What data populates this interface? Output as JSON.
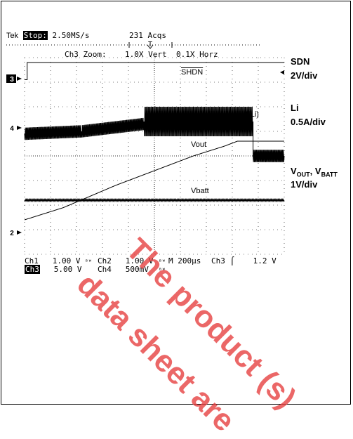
{
  "header": {
    "brand": "Tek",
    "state": "Stop:",
    "rate": "2.50MS/s",
    "acqs": "231 Acqs"
  },
  "zoom_line": {
    "text": "Ch3 Zoom:",
    "vert": "1.0X Vert",
    "horz": "0.1X Horz"
  },
  "channel_markers": {
    "ch3": "3",
    "ch4": "4",
    "ch2": "2"
  },
  "trace_labels": {
    "shdn": "SHDN",
    "ili": "I(Li)",
    "vout": "Vout",
    "vbatt": "Vbatt"
  },
  "right_labels": {
    "sdn": "SDN",
    "sdn_scale": "2V/div",
    "li": "Li",
    "li_scale": "0.5A/div",
    "vout_v": "V",
    "vout_sub": "OUT",
    "vbatt_v": ", V",
    "vbatt_sub": "BATT",
    "v_scale": "1V/div"
  },
  "settings": {
    "ch1": "Ch1",
    "ch1_val": "1.00 V",
    "ch2": "Ch2",
    "ch2_val": "1.00 V",
    "m": "M",
    "m_val": "200µs",
    "trig": "Ch3",
    "trig_val": "1.2 V",
    "ch3": "Ch3",
    "ch3_val": "5.00 V",
    "ch4": "Ch4",
    "ch4_val": "500mV",
    "bw": "ᴮᵂ"
  },
  "watermark": {
    "line1": "The product (s)",
    "line2": "data sheet are"
  },
  "chart_data": {
    "type": "line",
    "x_units": "divisions (200µs/div)",
    "xlim": [
      0,
      10
    ],
    "ylim": [
      -4,
      4
    ],
    "grid": true,
    "series": [
      {
        "name": "SHDN",
        "points": [
          [
            0,
            3.1
          ],
          [
            0.1,
            3.1
          ],
          [
            0.1,
            3.8
          ],
          [
            10,
            3.8
          ]
        ]
      },
      {
        "name": "I(Li)",
        "points": [
          [
            0,
            0.9
          ],
          [
            2.2,
            1.0
          ],
          [
            4.6,
            1.3
          ],
          [
            4.6,
            1.4
          ],
          [
            8.8,
            1.4
          ],
          [
            8.8,
            0.0
          ],
          [
            10,
            0.0
          ]
        ]
      },
      {
        "name": "Vout",
        "points": [
          [
            0,
            -2.6
          ],
          [
            1.5,
            -2.1
          ],
          [
            3.5,
            -1.2
          ],
          [
            5.0,
            -0.6
          ],
          [
            6.5,
            0.0
          ],
          [
            7.7,
            0.4
          ],
          [
            8.2,
            0.6
          ],
          [
            10,
            0.6
          ]
        ]
      },
      {
        "name": "Vbatt",
        "points": [
          [
            0,
            -1.8
          ],
          [
            10,
            -1.8
          ]
        ]
      }
    ]
  }
}
